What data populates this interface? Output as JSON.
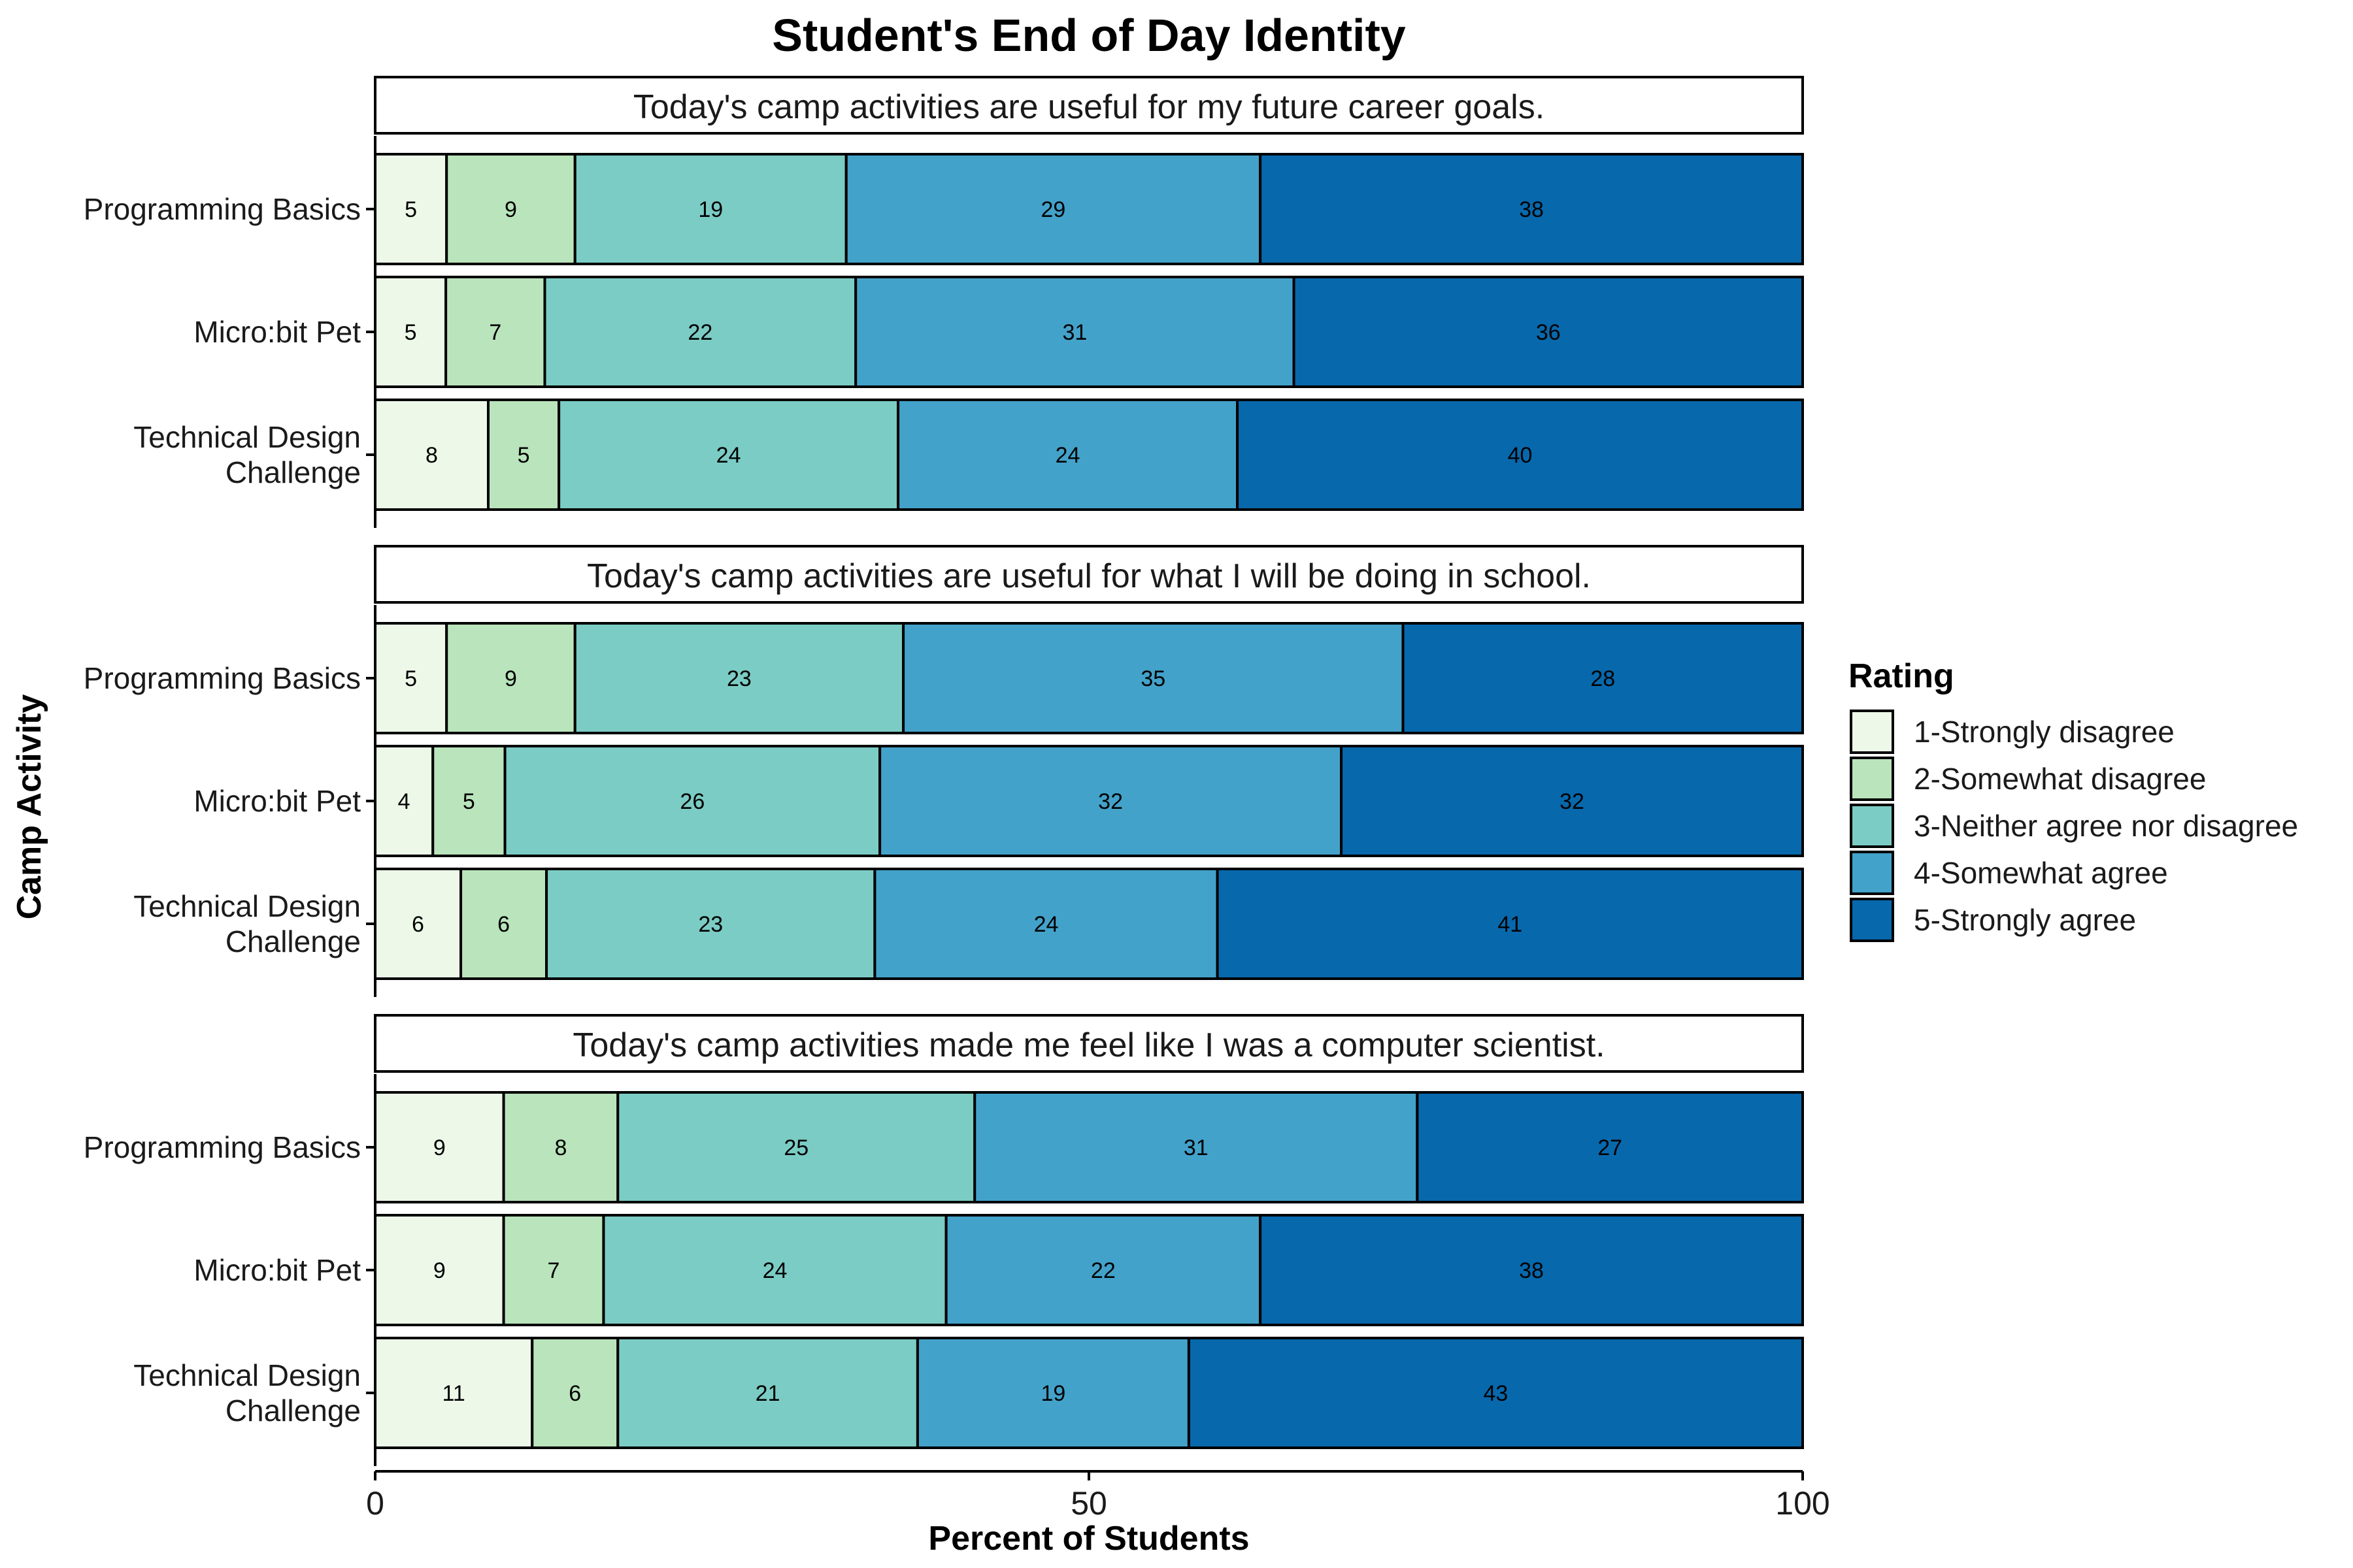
{
  "chart_data": {
    "type": "bar",
    "orientation": "horizontal",
    "stacked": true,
    "title": "Student's End of Day Identity",
    "xlabel": "Percent of Students",
    "ylabel": "Camp Activity",
    "xlim": [
      0,
      100
    ],
    "xticks": [
      0,
      50,
      100
    ],
    "grid": false,
    "legend": {
      "title": "Rating",
      "position": "right",
      "entries": [
        "1-Strongly disagree",
        "2-Somewhat disagree",
        "3-Neither agree nor disagree",
        "4-Somewhat agree",
        "5-Strongly agree"
      ]
    },
    "colors": [
      "#edf8e9",
      "#bae4bc",
      "#7bccc4",
      "#43a2ca",
      "#0868ac"
    ],
    "categories": [
      "Programming Basics",
      "Micro:bit Pet",
      "Technical Design\nChallenge"
    ],
    "panels": [
      {
        "title": "Today's camp activities are useful for my future career goals.",
        "values": [
          [
            5,
            9,
            19,
            29,
            38
          ],
          [
            5,
            7,
            22,
            31,
            36
          ],
          [
            8,
            5,
            24,
            24,
            40
          ]
        ]
      },
      {
        "title": "Today's camp activities are useful for what I will be doing in school.",
        "values": [
          [
            5,
            9,
            23,
            35,
            28
          ],
          [
            4,
            5,
            26,
            32,
            32
          ],
          [
            6,
            6,
            23,
            24,
            41
          ]
        ]
      },
      {
        "title": "Today's camp activities made me feel like I was a computer scientist.",
        "values": [
          [
            9,
            8,
            25,
            31,
            27
          ],
          [
            9,
            7,
            24,
            22,
            38
          ],
          [
            11,
            6,
            21,
            19,
            43
          ]
        ]
      }
    ]
  }
}
